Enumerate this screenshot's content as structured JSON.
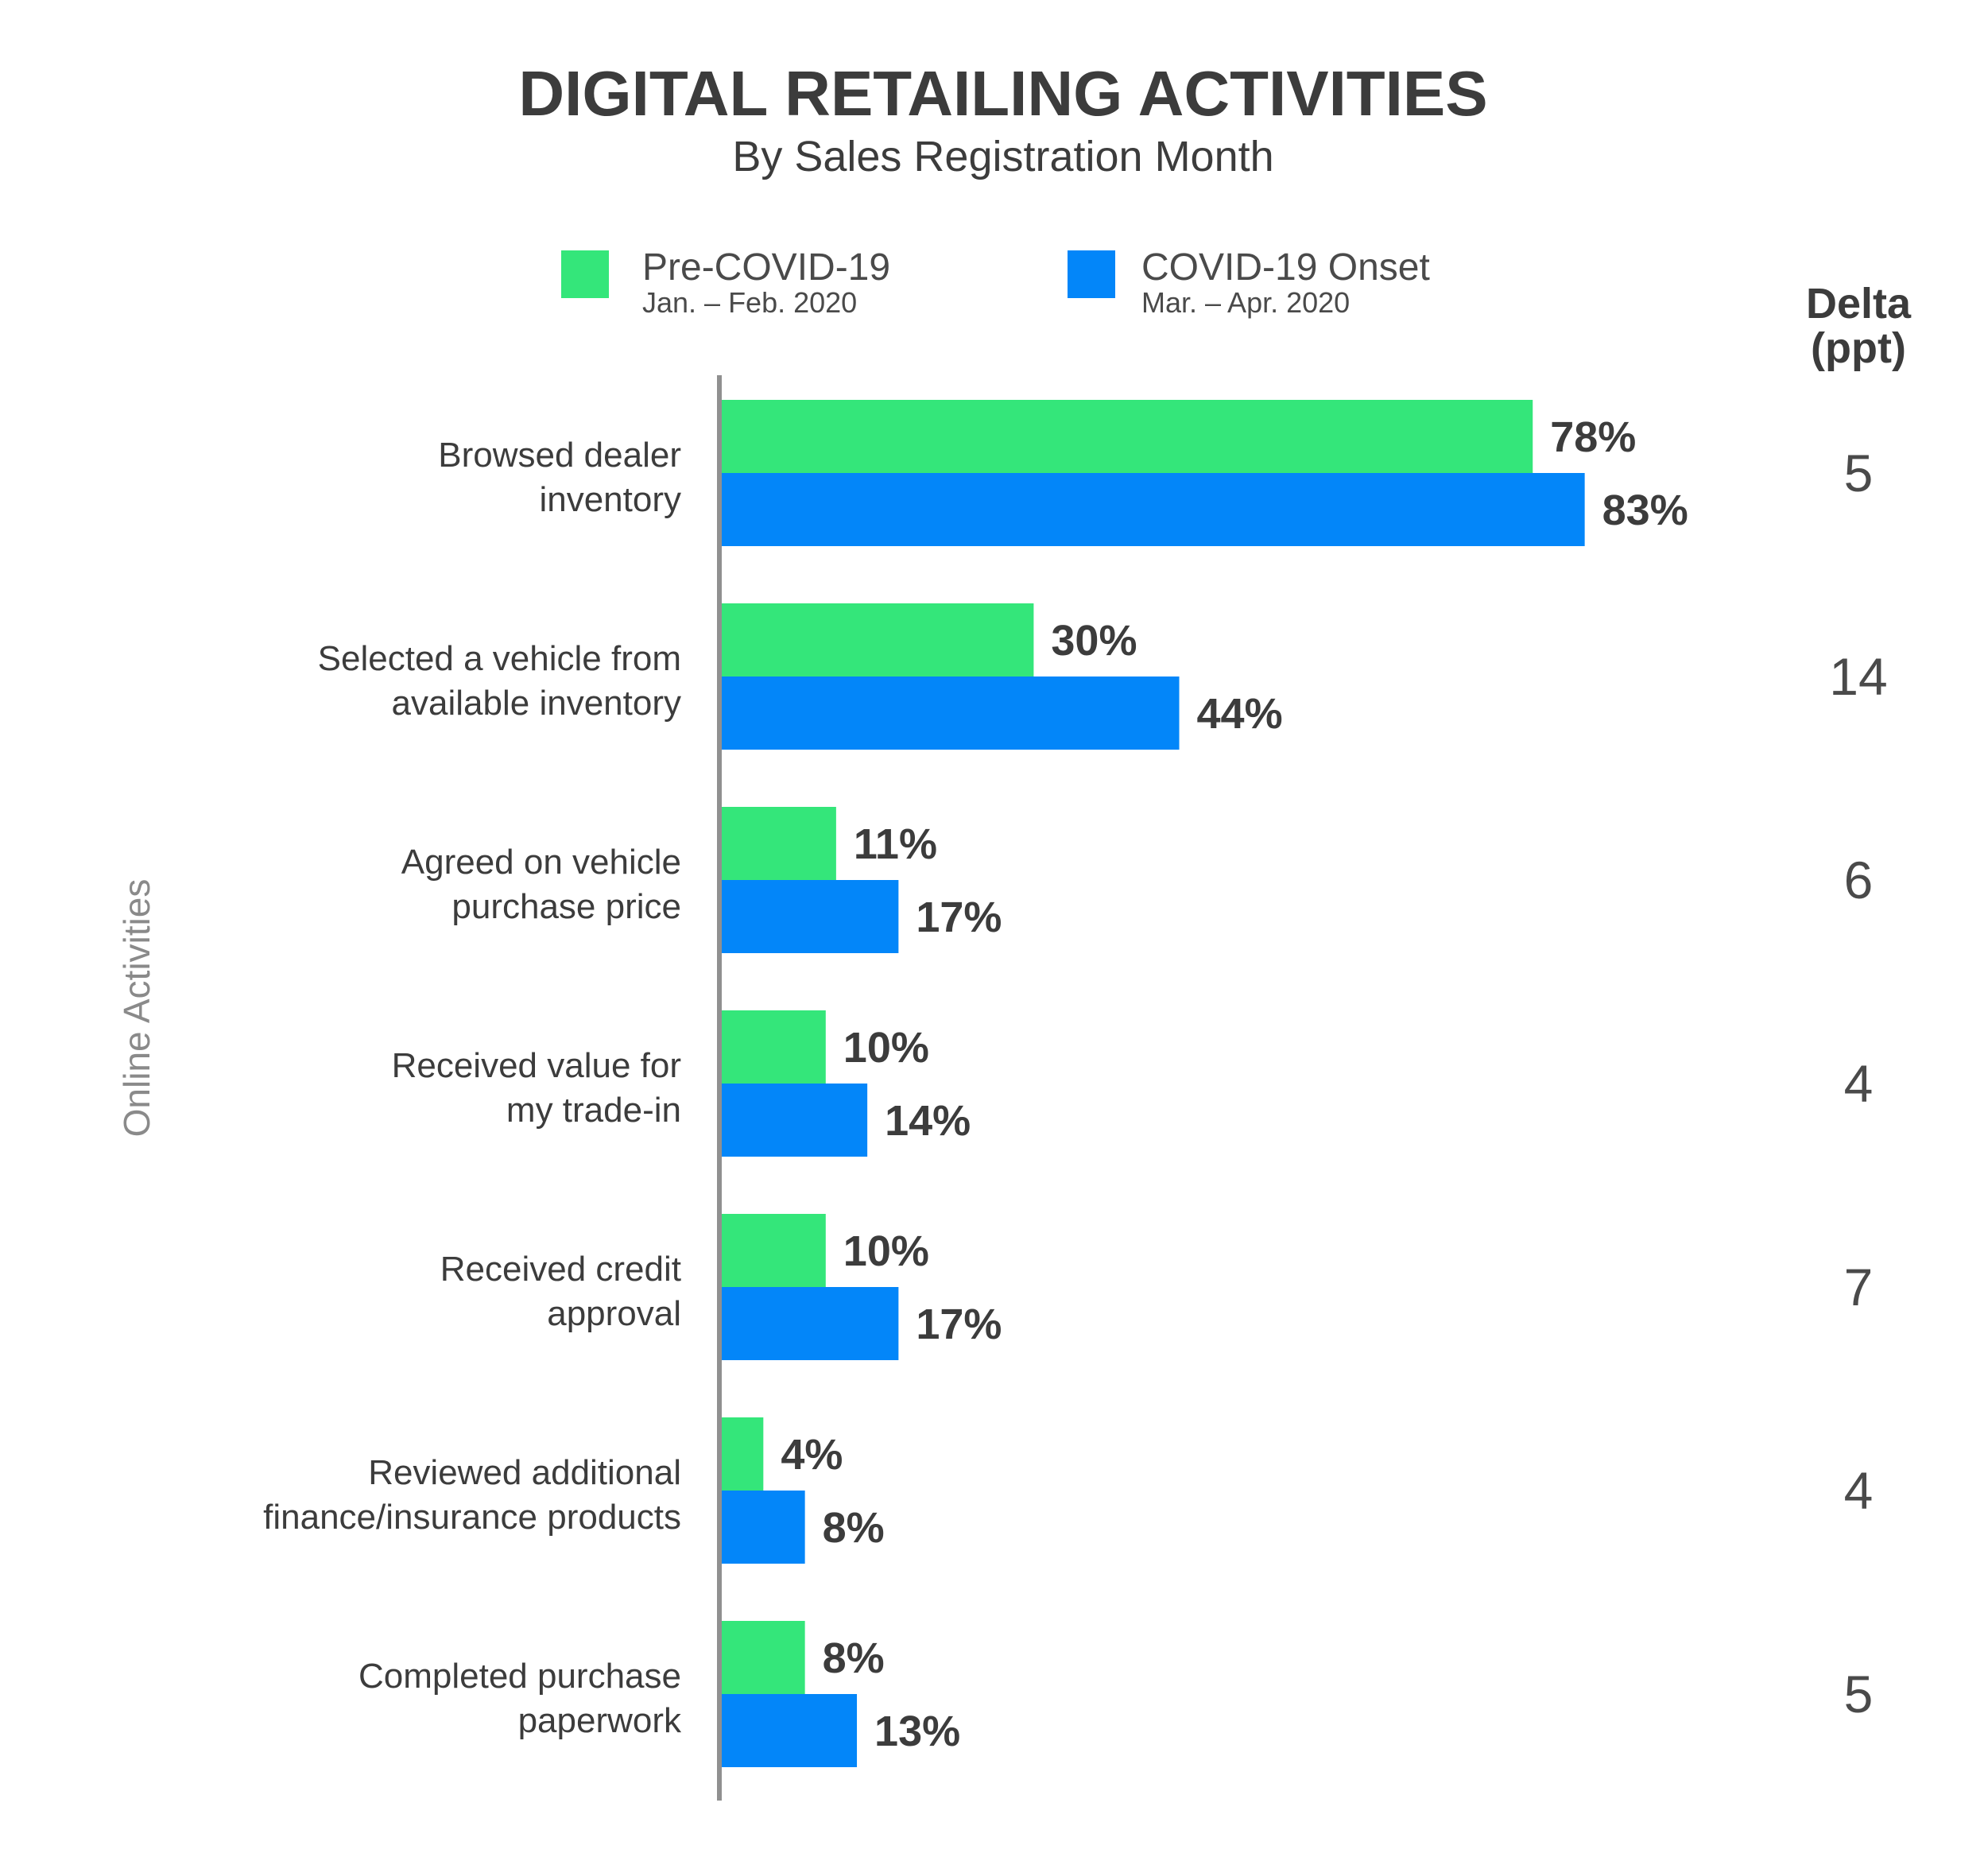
{
  "colors": {
    "pre": "#34E67A",
    "onset": "#0386F9",
    "axis": "#909090",
    "text": "#3c3c3c"
  },
  "chart_data": {
    "type": "bar",
    "orientation": "horizontal",
    "title": "DIGITAL RETAILING ACTIVITIES",
    "subtitle": "By Sales Registration Month",
    "ylabel": "Online Activities",
    "xlim": [
      0,
      100
    ],
    "grid": false,
    "legend_position": "top",
    "categories": [
      [
        "Browsed dealer",
        "inventory"
      ],
      [
        "Selected a vehicle from",
        "available inventory"
      ],
      [
        "Agreed on vehicle",
        "purchase price"
      ],
      [
        "Received value for",
        "my trade-in"
      ],
      [
        "Received credit",
        "approval"
      ],
      [
        "Reviewed additional",
        "finance/insurance products"
      ],
      [
        "Completed purchase",
        "paperwork"
      ]
    ],
    "series": [
      {
        "name": "Pre-COVID-19",
        "period": "Jan. – Feb. 2020",
        "color": "#34E67A",
        "values": [
          78,
          30,
          11,
          10,
          10,
          4,
          8
        ],
        "labels": [
          "78%",
          "30%",
          "11%",
          "10%",
          "10%",
          "4%",
          "8%"
        ]
      },
      {
        "name": "COVID-19 Onset",
        "period": "Mar. – Apr. 2020",
        "color": "#0386F9",
        "values": [
          83,
          44,
          17,
          14,
          17,
          8,
          13
        ],
        "labels": [
          "83%",
          "44%",
          "17%",
          "14%",
          "17%",
          "8%",
          "13%"
        ]
      }
    ],
    "delta": {
      "header": [
        "Delta",
        "(ppt)"
      ],
      "values": [
        "5",
        "14",
        "6",
        "4",
        "7",
        "4",
        "5"
      ]
    }
  }
}
